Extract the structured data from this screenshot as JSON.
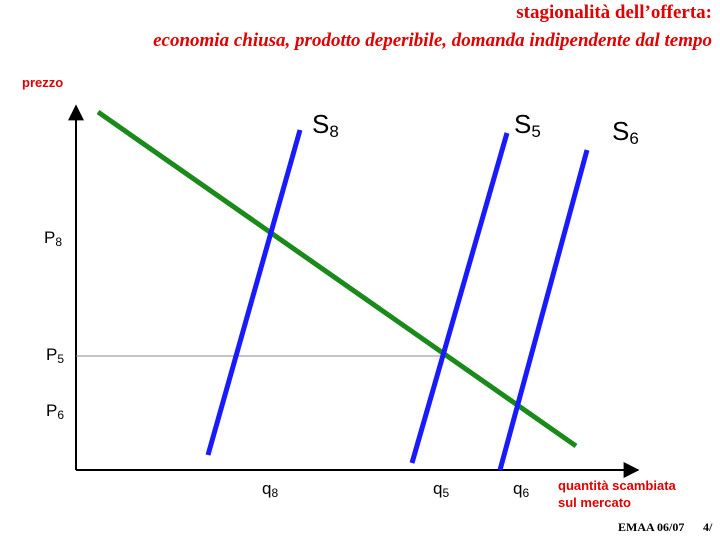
{
  "header": {
    "title_line1": "stagionalità dell’offerta:",
    "title_line2": "economia chiusa, prodotto deperibile, domanda indipendente dal tempo"
  },
  "axes": {
    "y_label": "prezzo",
    "x_label_line1": "quantità scambiata",
    "x_label_line2": "sul mercato"
  },
  "curves": [
    {
      "label": "S",
      "sub": "8"
    },
    {
      "label": "S",
      "sub": "5"
    },
    {
      "label": "S",
      "sub": "6"
    }
  ],
  "prices": [
    {
      "label": "P",
      "sub": "8"
    },
    {
      "label": "P",
      "sub": "5"
    },
    {
      "label": "P",
      "sub": "6"
    }
  ],
  "quantities": [
    {
      "label": "q",
      "sub": "8"
    },
    {
      "label": "q",
      "sub": "5"
    },
    {
      "label": "q",
      "sub": "6"
    }
  ],
  "footer": {
    "course": "EMAA 06/07",
    "page": "4/"
  }
}
